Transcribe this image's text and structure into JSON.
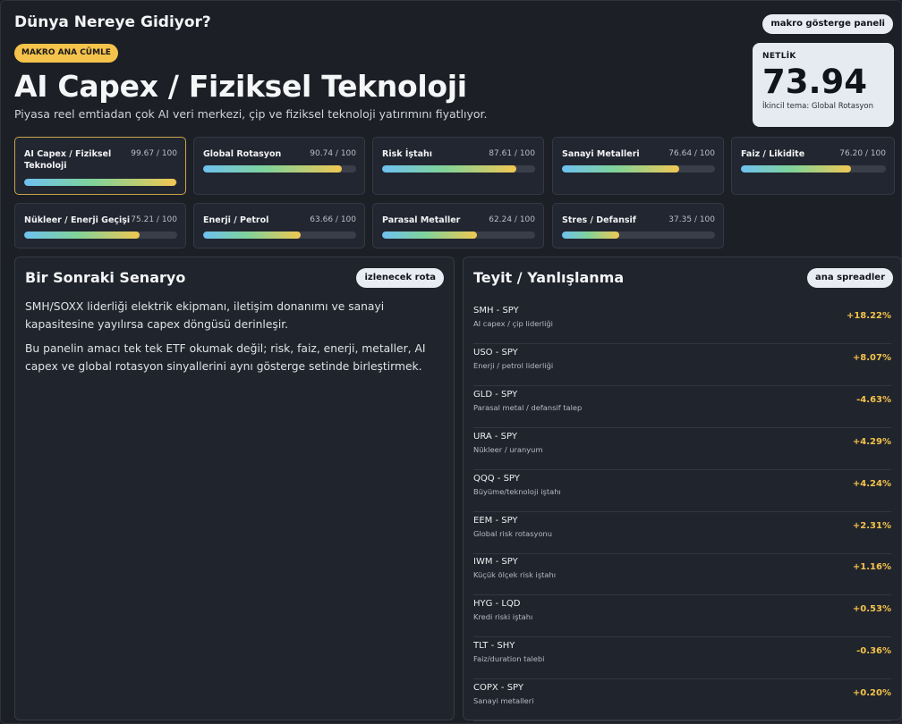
{
  "header": {
    "title": "Dünya Nereye Gidiyor?",
    "panel_badge": "makro gösterge paneli"
  },
  "hero": {
    "tag": "MAKRO ANA CÜMLE",
    "title": "AI Capex / Fiziksel Teknoloji",
    "subtitle": "Piyasa reel emtiadan çok AI veri merkezi, çip ve fiziksel teknoloji yatırımını fiyatlıyor."
  },
  "score": {
    "label": "NETLİK",
    "value": "73.94",
    "secondary": "İkincil tema: Global Rotasyon"
  },
  "themes": [
    {
      "name": "AI Capex / Fiziksel Teknoloji",
      "score": "99.67 / 100",
      "level": 0.9967
    },
    {
      "name": "Global Rotasyon",
      "score": "90.74 / 100",
      "level": 0.9074
    },
    {
      "name": "Risk İştahı",
      "score": "87.61 / 100",
      "level": 0.8761
    },
    {
      "name": "Sanayi Metalleri",
      "score": "76.64 / 100",
      "level": 0.7664
    },
    {
      "name": "Faiz / Likidite",
      "score": "76.20 / 100",
      "level": 0.762
    },
    {
      "name": "Nükleer / Enerji Geçişi",
      "score": "75.21 / 100",
      "level": 0.7521
    },
    {
      "name": "Enerji / Petrol",
      "score": "63.66 / 100",
      "level": 0.6366
    },
    {
      "name": "Parasal Metaller",
      "score": "62.24 / 100",
      "level": 0.6224
    },
    {
      "name": "Stres / Defansif",
      "score": "37.35 / 100",
      "level": 0.3735
    }
  ],
  "scenario": {
    "title": "Bir Sonraki Senaryo",
    "badge": "izlenecek rota",
    "paragraph1": "SMH/SOXX liderliği elektrik ekipmanı, iletişim donanımı ve sanayi kapasitesine yayılırsa capex döngüsü derinleşir.",
    "paragraph2": "Bu panelin amacı tek tek ETF okumak değil; risk, faiz, enerji, metaller, AI capex ve global rotasyon sinyallerini aynı gösterge setinde birleştirmek."
  },
  "confirm": {
    "title": "Teyit / Yanlışlanma",
    "badge": "ana spreadler",
    "rows": [
      {
        "pair": "SMH - SPY",
        "desc": "AI capex / çip liderliği",
        "value": "+18.22%"
      },
      {
        "pair": "USO - SPY",
        "desc": "Enerji / petrol liderliği",
        "value": "+8.07%"
      },
      {
        "pair": "GLD - SPY",
        "desc": "Parasal metal / defansif talep",
        "value": "-4.63%"
      },
      {
        "pair": "URA - SPY",
        "desc": "Nükleer / uranyum",
        "value": "+4.29%"
      },
      {
        "pair": "QQQ - SPY",
        "desc": "Büyüme/teknoloji iştahı",
        "value": "+4.24%"
      },
      {
        "pair": "EEM - SPY",
        "desc": "Global risk rotasyonu",
        "value": "+2.31%"
      },
      {
        "pair": "IWM - SPY",
        "desc": "Küçük ölçek risk iştahı",
        "value": "+1.16%"
      },
      {
        "pair": "HYG - LQD",
        "desc": "Kredi riski iştahı",
        "value": "+0.53%"
      },
      {
        "pair": "TLT - SHY",
        "desc": "Faiz/duration talebi",
        "value": "-0.36%"
      },
      {
        "pair": "COPX - SPY",
        "desc": "Sanayi metalleri",
        "value": "+0.20%"
      }
    ]
  }
}
